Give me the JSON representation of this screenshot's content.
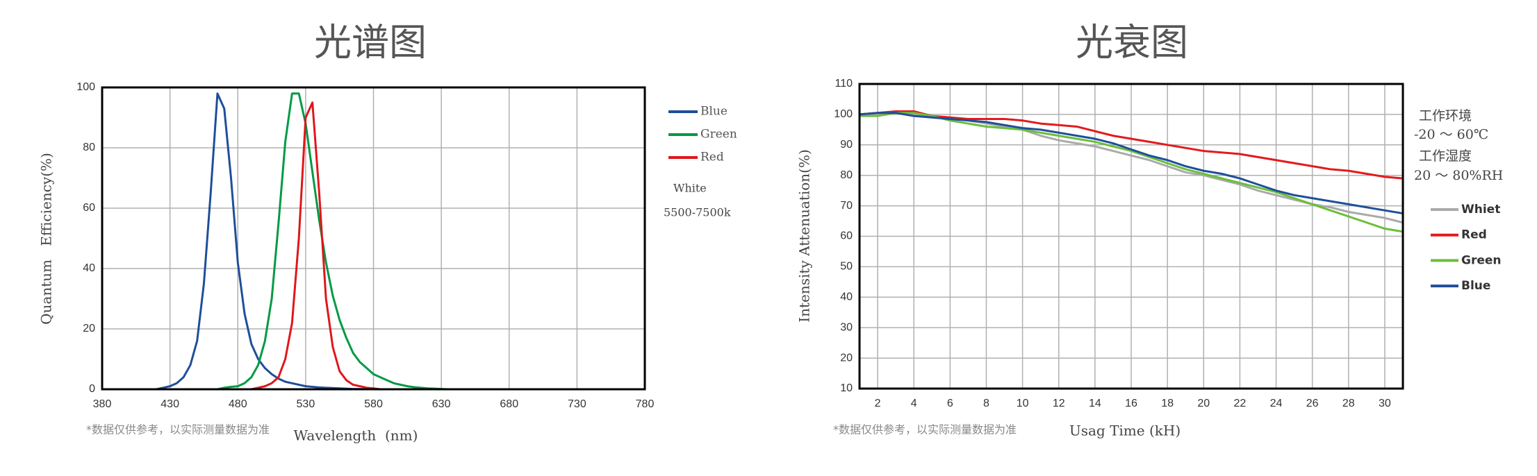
{
  "chart_data": [
    {
      "type": "line",
      "title": "光谱图",
      "x_label": "Wavelength  (nm)",
      "y_label": "Quantum   Efficiency(%)",
      "note": "*数据仅供参考，以实际测量数据为准",
      "annotations": [
        "White",
        "5500-7500k"
      ],
      "legend": "right",
      "grid": true,
      "xlim": [
        380,
        780
      ],
      "xticks": [
        380,
        430,
        480,
        530,
        580,
        630,
        680,
        730,
        780
      ],
      "ylim": [
        0,
        100
      ],
      "yticks": [
        0,
        20,
        40,
        60,
        80,
        100
      ],
      "x": [
        380,
        385,
        390,
        395,
        400,
        405,
        410,
        415,
        420,
        425,
        430,
        435,
        440,
        445,
        450,
        455,
        460,
        465,
        470,
        475,
        480,
        485,
        490,
        495,
        500,
        505,
        510,
        515,
        520,
        525,
        530,
        535,
        540,
        545,
        550,
        555,
        560,
        565,
        570,
        575,
        580,
        585,
        590,
        595,
        600,
        605,
        610,
        615,
        620,
        625,
        630,
        635,
        640,
        645,
        650,
        655,
        660,
        665,
        670,
        675,
        680,
        685,
        690,
        695,
        700,
        705,
        710
      ],
      "series": [
        {
          "name": "Blue",
          "color": "#1f4e9a",
          "values": [
            0,
            0,
            0,
            0,
            0,
            0,
            0,
            0,
            0,
            0.5,
            1,
            2,
            4,
            8,
            16,
            35,
            65,
            98,
            93,
            70,
            42,
            25,
            15,
            10,
            7,
            5,
            3.5,
            2.5,
            2,
            1.5,
            1,
            0.8,
            0.6,
            0.5,
            0.4,
            0.3,
            0.2,
            0.1,
            0.1,
            0,
            0,
            0,
            0,
            0,
            0,
            0,
            0,
            0,
            0,
            0,
            0,
            0,
            0,
            0,
            0,
            0,
            0,
            0,
            0,
            0,
            0,
            0,
            0,
            0,
            0,
            0,
            0
          ]
        },
        {
          "name": "Green",
          "color": "#009a44",
          "values": [
            0,
            0,
            0,
            0,
            0,
            0,
            0,
            0,
            0,
            0,
            0,
            0,
            0,
            0,
            0,
            0,
            0,
            0,
            0.5,
            0.8,
            1,
            2,
            4,
            8,
            16,
            30,
            55,
            82,
            98,
            98,
            88,
            72,
            56,
            42,
            31,
            23,
            17,
            12,
            9,
            7,
            5,
            4,
            3,
            2,
            1.5,
            1,
            0.7,
            0.5,
            0.3,
            0.2,
            0.1,
            0,
            0,
            0,
            0,
            0,
            0,
            0,
            0,
            0,
            0,
            0,
            0,
            0,
            0,
            0,
            0
          ]
        },
        {
          "name": "Red",
          "color": "#e0161b",
          "values": [
            0,
            0,
            0,
            0,
            0,
            0,
            0,
            0,
            0,
            0,
            0,
            0,
            0,
            0,
            0,
            0,
            0,
            0,
            0,
            0,
            0,
            0,
            0,
            0.5,
            1,
            2,
            4,
            10,
            22,
            50,
            90,
            95,
            65,
            30,
            14,
            6,
            3,
            1.5,
            1,
            0.5,
            0.3,
            0,
            0,
            0,
            0,
            0,
            0,
            0,
            0,
            0,
            0,
            0,
            0,
            0,
            0,
            0,
            0,
            0,
            0,
            0,
            0,
            0,
            0,
            0,
            0,
            0,
            0
          ]
        }
      ]
    },
    {
      "type": "line",
      "title": "光衰图",
      "x_label": "Usag Time (kH)",
      "y_label": "Intensity Attenuation(%)",
      "note": "*数据仅供参考，以实际测量数据为准",
      "annotations": [
        "工作环境",
        "-20 ～ 60℃",
        "工作湿度",
        "20 ～ 80%RH"
      ],
      "legend": "right",
      "grid": true,
      "xlim": [
        1,
        31
      ],
      "xticks": [
        2,
        4,
        6,
        8,
        10,
        12,
        14,
        16,
        18,
        20,
        22,
        24,
        26,
        28,
        30
      ],
      "ylim": [
        10,
        110
      ],
      "yticks": [
        10,
        20,
        30,
        40,
        50,
        60,
        70,
        80,
        90,
        100,
        110
      ],
      "x": [
        1,
        2,
        3,
        4,
        5,
        6,
        7,
        8,
        9,
        10,
        11,
        12,
        13,
        14,
        15,
        16,
        17,
        18,
        19,
        20,
        21,
        22,
        23,
        24,
        25,
        26,
        27,
        28,
        29,
        30,
        31
      ],
      "series": [
        {
          "name": "Whiet",
          "color": "#aaaaaa",
          "values": [
            100,
            100.5,
            100.5,
            100,
            99,
            98.5,
            98,
            97,
            96,
            95,
            93,
            91.5,
            90.5,
            89.5,
            88,
            86.5,
            85,
            83,
            81,
            80,
            78.5,
            77,
            75,
            73.5,
            72,
            70.5,
            69.5,
            68,
            67,
            66,
            64.5
          ]
        },
        {
          "name": "Red",
          "color": "#e31a1c",
          "values": [
            100,
            100.5,
            101,
            101,
            99.5,
            99,
            98.5,
            98.5,
            98.5,
            98,
            97,
            96.5,
            96,
            94.5,
            93,
            92,
            91,
            90,
            89,
            88,
            87.5,
            87,
            86,
            85,
            84,
            83,
            82,
            81.5,
            80.5,
            79.5,
            79
          ]
        },
        {
          "name": "Green",
          "color": "#6abf3a",
          "values": [
            99.5,
            99.5,
            100.5,
            100.5,
            99.5,
            98,
            97,
            96,
            95.5,
            95,
            94,
            93,
            92,
            91,
            89.5,
            88,
            86,
            84,
            82,
            80.5,
            79,
            77.5,
            76,
            74.5,
            72.5,
            70.5,
            68.5,
            66.5,
            64.5,
            62.5,
            61.5
          ]
        },
        {
          "name": "Blue",
          "color": "#1f4e9a",
          "values": [
            100,
            100.5,
            100.5,
            99.5,
            99,
            98.5,
            98,
            97.5,
            96.5,
            95.5,
            95,
            94,
            93,
            92,
            90.5,
            88.5,
            86.5,
            85,
            83,
            81.5,
            80.5,
            79,
            77,
            75,
            73.5,
            72.5,
            71.5,
            70.5,
            69.5,
            68.5,
            67.5
          ]
        }
      ]
    }
  ]
}
